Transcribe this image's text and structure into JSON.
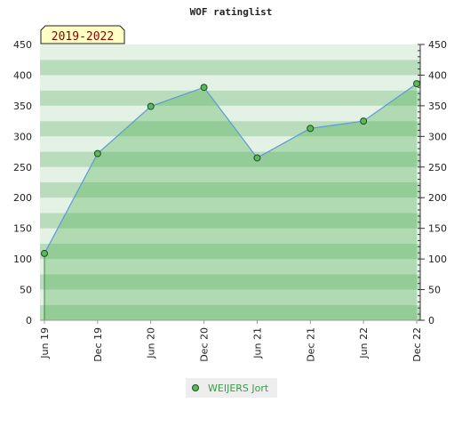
{
  "chart_data": {
    "type": "area",
    "title": "WOF ratinglist",
    "period_badge": "2019-2022",
    "categories": [
      "Jun 19",
      "Dec 19",
      "Jun 20",
      "Dec 20",
      "Jun 21",
      "Dec 21",
      "Jun 22",
      "Dec 22"
    ],
    "series": [
      {
        "name": "WEIJERS Jort",
        "values": [
          109,
          272,
          349,
          380,
          265,
          313,
          325,
          386
        ]
      }
    ],
    "ylim": [
      0,
      450
    ],
    "yticks": [
      0,
      50,
      100,
      150,
      200,
      250,
      300,
      350,
      400,
      450
    ],
    "y_axis_right": true,
    "legend_position": "bottom-center",
    "grid": true,
    "colors": {
      "line": "#5b9bd5",
      "area": "#4caf50",
      "marker_fill": "#5cb85c",
      "marker_stroke": "#1e4d1e",
      "band_light": "#e4f2e6",
      "band_dark": "#b8dcbc",
      "badge_bg": "#ffffc4",
      "badge_text": "#880000",
      "legend_text": "#3a9a4a"
    }
  }
}
